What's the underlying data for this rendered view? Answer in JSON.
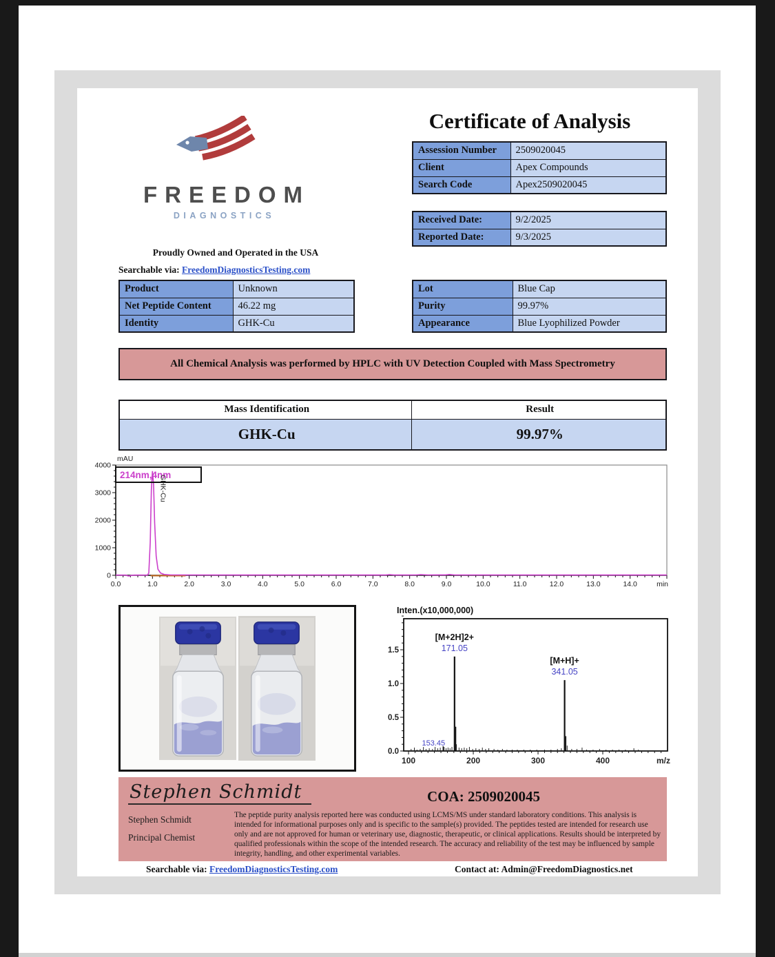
{
  "doc": {
    "title": "Certificate of Analysis",
    "logo": {
      "name": "FREEDOM",
      "sub": "DIAGNOSTICS"
    },
    "tagline": "Proudly Owned and Operated in the USA",
    "search": {
      "label": "Searchable via:",
      "link": "FreedomDiagnosticsTesting.com"
    },
    "info_rows": [
      [
        "Assession Number",
        "2509020045"
      ],
      [
        "Client",
        "Apex Compounds"
      ],
      [
        "Search Code",
        "Apex2509020045"
      ]
    ],
    "date_rows": [
      [
        "Received Date:",
        "9/2/2025"
      ],
      [
        "Reported Date:",
        "9/3/2025"
      ]
    ],
    "product_rows": [
      [
        "Product",
        "Unknown"
      ],
      [
        "Net Peptide Content",
        "46.22 mg"
      ],
      [
        "Identity",
        "GHK-Cu"
      ]
    ],
    "lot_rows": [
      [
        "Lot",
        "Blue Cap"
      ],
      [
        "Purity",
        "99.97%"
      ],
      [
        "Appearance",
        "Blue Lyophilized Powder"
      ]
    ],
    "banner": "All Chemical Analysis was performed by HPLC with UV Detection Coupled with Mass Spectrometry",
    "mass": {
      "headers": [
        "Mass Identification",
        "Result"
      ],
      "values": [
        "GHK-Cu",
        "99.97%"
      ]
    },
    "footer": {
      "signature": "Stephen Schmidt",
      "coa": "COA: 2509020045",
      "name": "Stephen Schmidt",
      "role": "Principal Chemist",
      "disclaimer": "The peptide purity analysis reported here was conducted using LCMS/MS under standard laboratory conditions. This analysis is intended for informational purposes only and is specific to the sample(s) provided. The peptides tested are intended for research use only and are not approved for human or veterinary use, diagnostic, therapeutic, or clinical applications. Results should be interpreted by qualified professionals within the scope of the intended research. The accuracy and reliability of the test may be influenced by sample integrity, handling, and other experimental variables.",
      "search_label": "Searchable via:",
      "search_link": "FreedomDiagnosticsTesting.com",
      "contact": "Contact at: Admin@FreedomDiagnostics.net"
    }
  },
  "colors": {
    "table_label_blue": "#7d9fdb",
    "table_value_blue": "#c6d6f1",
    "banner_pink": "#d79898",
    "link_blue": "#2b50c8",
    "logo_red": "#b13c3c",
    "logo_slate": "#6e86ab",
    "trace_magenta": "#cb3fcb",
    "spectrum_label_blue": "#4543c4",
    "cap_blue": "#2b36a2"
  },
  "chart_data": [
    {
      "type": "line",
      "name": "hplc-uv-chromatogram",
      "ylabel": "mAU",
      "xlabel": "min",
      "detector_label": "214nm,4nm",
      "peak_label": "GHK-Cu",
      "peak": {
        "retention_min": 1.0,
        "height_mau": 3780
      },
      "xlim": [
        0,
        15.0
      ],
      "ylim": [
        0,
        4000
      ],
      "xtick_major": 1.0,
      "xtick_minor": 0.2,
      "ytick_major": 1000,
      "ytick_minor": 200,
      "line_color": "#cb3fcb",
      "integration": {
        "from": 0.95,
        "to": 1.9,
        "color": "#c2691e"
      },
      "trace": [
        [
          0,
          8
        ],
        [
          0.28,
          8
        ],
        [
          0.32,
          -18
        ],
        [
          0.36,
          -26
        ],
        [
          0.42,
          -6
        ],
        [
          0.5,
          8
        ],
        [
          0.86,
          8
        ],
        [
          0.9,
          80
        ],
        [
          0.94,
          1200
        ],
        [
          0.97,
          3100
        ],
        [
          1.0,
          3780
        ],
        [
          1.03,
          3300
        ],
        [
          1.06,
          1900
        ],
        [
          1.1,
          700
        ],
        [
          1.15,
          220
        ],
        [
          1.22,
          80
        ],
        [
          1.32,
          30
        ],
        [
          1.5,
          12
        ],
        [
          3,
          10
        ],
        [
          5,
          10
        ],
        [
          7.35,
          10
        ],
        [
          7.45,
          24
        ],
        [
          7.58,
          11
        ],
        [
          8.18,
          12
        ],
        [
          8.3,
          26
        ],
        [
          8.5,
          12
        ],
        [
          8.98,
          14
        ],
        [
          9.08,
          30
        ],
        [
          9.22,
          12
        ],
        [
          11,
          10
        ],
        [
          13,
          10
        ],
        [
          15,
          10
        ]
      ]
    },
    {
      "type": "stick",
      "name": "mass-spectrum",
      "title": "Inten.(x10,000,000)",
      "xlabel": "m/z",
      "xlim": [
        92.5,
        500
      ],
      "ylim": [
        0,
        1.96
      ],
      "xticks": [
        100,
        200,
        300,
        400
      ],
      "yticks": [
        0,
        0.5,
        1.0,
        1.5
      ],
      "xtick_minor": 10,
      "ytick_minor": 0.1,
      "label_color": "#4543c4",
      "peaks": [
        {
          "mz": 171.05,
          "h": 1.4,
          "ion": "[M+2H]2+",
          "label": "171.05"
        },
        {
          "mz": 172.9,
          "h": 0.36
        },
        {
          "mz": 341.05,
          "h": 1.05,
          "ion": "[M+H]+",
          "label": "341.05"
        },
        {
          "mz": 342.9,
          "h": 0.22
        },
        {
          "mz": 153.45,
          "h": 0.07,
          "label": "153.45",
          "base_label": true,
          "label_dx": -14
        }
      ],
      "noise": [
        [
          104,
          0.03
        ],
        [
          109,
          0.05
        ],
        [
          113,
          0.02
        ],
        [
          118,
          0.03
        ],
        [
          123,
          0.06
        ],
        [
          127,
          0.03
        ],
        [
          132,
          0.04
        ],
        [
          137,
          0.03
        ],
        [
          141,
          0.06
        ],
        [
          145,
          0.04
        ],
        [
          149,
          0.05
        ],
        [
          155,
          0.06
        ],
        [
          158,
          0.04
        ],
        [
          161,
          0.05
        ],
        [
          164,
          0.04
        ],
        [
          167,
          0.06
        ],
        [
          174,
          0.1
        ],
        [
          178,
          0.05
        ],
        [
          182,
          0.04
        ],
        [
          186,
          0.05
        ],
        [
          190,
          0.04
        ],
        [
          194,
          0.06
        ],
        [
          199,
          0.03
        ],
        [
          204,
          0.04
        ],
        [
          209,
          0.03
        ],
        [
          214,
          0.05
        ],
        [
          219,
          0.03
        ],
        [
          224,
          0.04
        ],
        [
          232,
          0.03
        ],
        [
          238,
          0.02
        ],
        [
          245,
          0.03
        ],
        [
          252,
          0.02
        ],
        [
          260,
          0.02
        ],
        [
          268,
          0.02
        ],
        [
          278,
          0.02
        ],
        [
          288,
          0.02
        ],
        [
          298,
          0.02
        ],
        [
          310,
          0.02
        ],
        [
          320,
          0.02
        ],
        [
          330,
          0.03
        ],
        [
          336,
          0.04
        ],
        [
          345,
          0.08
        ],
        [
          352,
          0.03
        ],
        [
          360,
          0.03
        ],
        [
          368,
          0.05
        ],
        [
          375,
          0.02
        ],
        [
          385,
          0.02
        ],
        [
          395,
          0.03
        ],
        [
          405,
          0.02
        ],
        [
          415,
          0.02
        ],
        [
          425,
          0.02
        ],
        [
          435,
          0.02
        ],
        [
          448,
          0.04
        ],
        [
          455,
          0.02
        ]
      ]
    }
  ]
}
